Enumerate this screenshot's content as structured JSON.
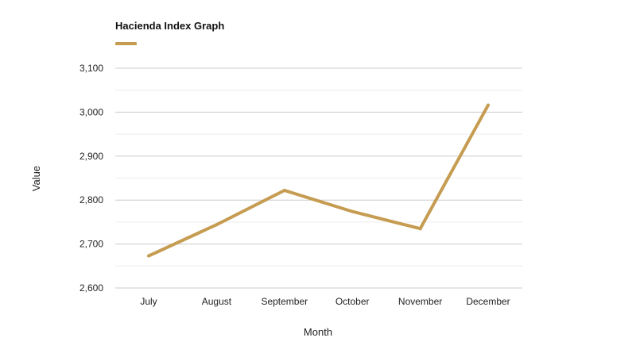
{
  "chart_data": {
    "type": "line",
    "title": "Hacienda Index Graph",
    "xlabel": "Month",
    "ylabel": "Value",
    "categories": [
      "July",
      "August",
      "September",
      "October",
      "November",
      "December"
    ],
    "series": [
      {
        "values": [
          2673,
          2744,
          2822,
          2774,
          2735,
          3016
        ],
        "color": "#c59c51"
      }
    ],
    "ylim": [
      2600,
      3100
    ],
    "yticks": [
      2600,
      2700,
      2800,
      2900,
      3000,
      3100
    ],
    "ytick_labels": [
      "2,600",
      "2,700",
      "2,800",
      "2,900",
      "3,000",
      "3,100"
    ],
    "grid": true,
    "legend": "top-left",
    "colors": {
      "major_grid": "#cccccc",
      "minor_grid": "#ececec",
      "axis_text": "#222222"
    }
  }
}
